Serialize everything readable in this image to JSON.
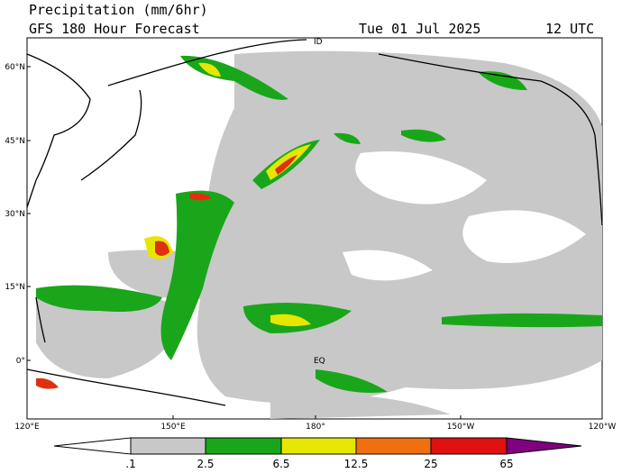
{
  "header": {
    "title": "Precipitation (mm/6hr)",
    "forecast": "GFS 180 Hour Forecast",
    "date": "Tue 01 Jul 2025",
    "time": "12 UTC"
  },
  "map": {
    "lat_labels": [
      "60°N",
      "45°N",
      "30°N",
      "15°N",
      "0°"
    ],
    "lon_labels": [
      "120°E",
      "150°E",
      "180°",
      "150°W",
      "120°W"
    ],
    "annotations": [
      "ID",
      "EQ"
    ]
  },
  "colorbar": {
    "labels": [
      ".1",
      "2.5",
      "6.5",
      "12.5",
      "25",
      "65"
    ]
  }
}
